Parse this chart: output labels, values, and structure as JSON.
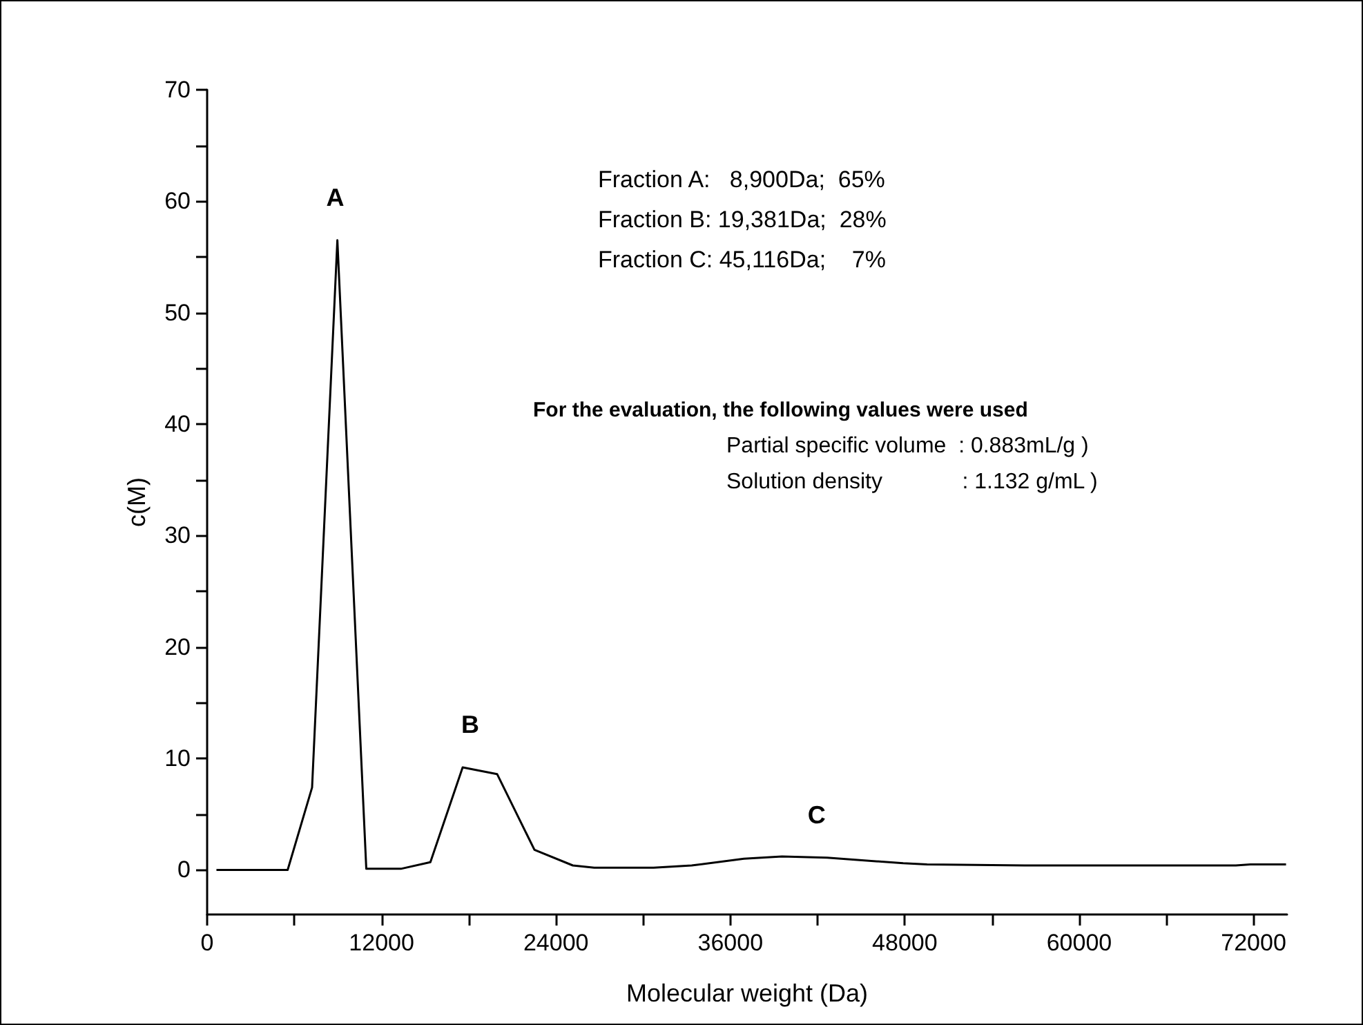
{
  "chart_data": {
    "type": "line",
    "xlabel": "Molecular weight (Da)",
    "ylabel": "c(M)",
    "x": [
      640,
      5540,
      7220,
      8960,
      10950,
      13330,
      15360,
      17580,
      19950,
      22520,
      25160,
      26630,
      30720,
      33340,
      36930,
      39550,
      42660,
      47890,
      49530,
      56240,
      70780,
      71780,
      74230
    ],
    "series": [
      {
        "color": "#000000",
        "values": [
          0,
          0,
          7.4,
          56.5,
          0.1,
          0.1,
          0.7,
          9.2,
          8.6,
          1.8,
          0.4,
          0.2,
          0.2,
          0.4,
          1.0,
          1.2,
          1.1,
          0.6,
          0.5,
          0.4,
          0.4,
          0.5,
          0.5
        ]
      }
    ],
    "xlim": [
      0,
      74300
    ],
    "xticks": [
      0,
      {
        "value": 6000,
        "label": null
      },
      12000,
      {
        "value": 18000,
        "label": null
      },
      24000,
      {
        "value": 30000,
        "label": null
      },
      36000,
      {
        "value": 42000,
        "label": null
      },
      48000,
      {
        "value": 54000,
        "label": null
      },
      60000,
      {
        "value": 66000,
        "label": null
      },
      72000
    ],
    "ylim": [
      -4,
      70
    ],
    "yticks": [
      0,
      {
        "value": 5,
        "label": null
      },
      10,
      {
        "value": 15,
        "label": null
      },
      20,
      {
        "value": 25,
        "label": null
      },
      30,
      {
        "value": 35,
        "label": null
      },
      40,
      {
        "value": 45,
        "label": null
      },
      50,
      {
        "value": 55,
        "label": null
      },
      60,
      {
        "value": 65,
        "label": null
      },
      70
    ],
    "grid": false,
    "marker": "none",
    "line_style": "solid",
    "annotations": [
      {
        "text": "A",
        "x": 8960,
        "y": 56.5
      },
      {
        "text": "B",
        "x": 18240,
        "y": 9.2
      },
      {
        "text": "C",
        "x": 42080,
        "y": 1.1
      },
      "Fraction A:   8,900Da;  65%",
      "Fraction B: 19,381Da;  28%",
      "Fraction C: 45,116Da;    7%",
      "For the evaluation, the following values were used",
      "Partial specific volume  : 0.883mL/g )",
      "Solution density             : 1.132 g/mL )"
    ]
  }
}
